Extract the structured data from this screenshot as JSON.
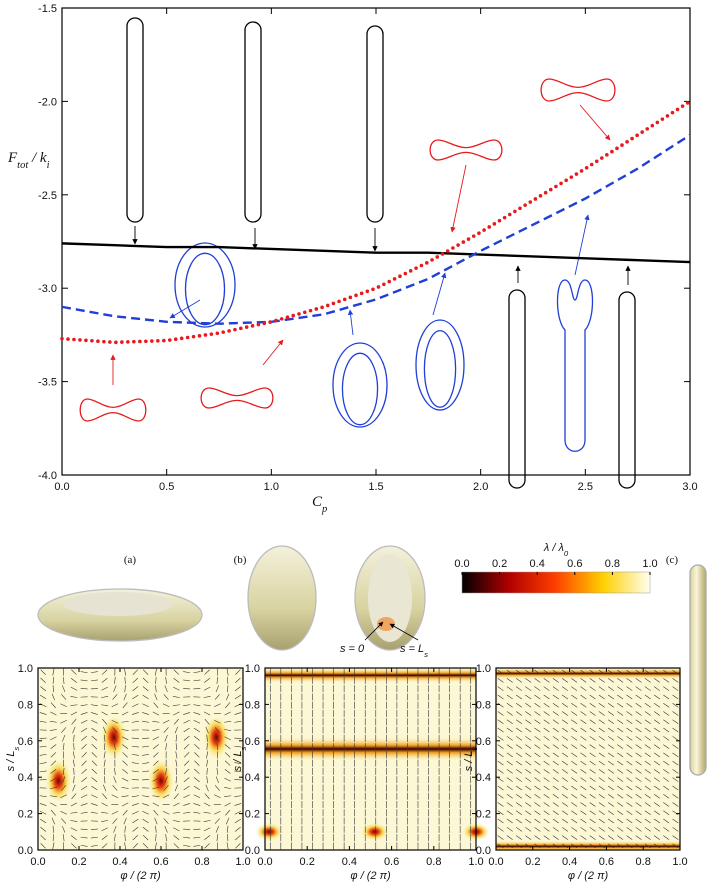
{
  "chart_data": [
    {
      "type": "line",
      "x_label": {
        "main": "C",
        "sub": "p"
      },
      "y_label": {
        "main": "F",
        "sub": "tot",
        "rest": " / k",
        "sub2": "i"
      },
      "xlim": [
        0,
        3
      ],
      "ylim": [
        -4,
        -1.5
      ],
      "xticks": [
        {
          "value": 0,
          "label": "0.0"
        },
        {
          "value": 0.5,
          "label": "0.5"
        },
        {
          "value": 1,
          "label": "1.0"
        },
        {
          "value": 1.5,
          "label": "1.5"
        },
        {
          "value": 2,
          "label": "2.0"
        },
        {
          "value": 2.5,
          "label": "2.5"
        },
        {
          "value": 3,
          "label": "3.0"
        }
      ],
      "yticks": [
        {
          "value": -1.5,
          "label": "-1.5"
        },
        {
          "value": -2,
          "label": "-2.0"
        },
        {
          "value": -2.5,
          "label": "-2.5"
        },
        {
          "value": -3,
          "label": "-3.0"
        },
        {
          "value": -3.5,
          "label": "-3.5"
        },
        {
          "value": -4,
          "label": "-4.0"
        }
      ],
      "x": [
        0,
        0.25,
        0.5,
        0.75,
        1,
        1.25,
        1.5,
        1.75,
        2,
        2.25,
        2.5,
        2.75,
        3
      ],
      "series": [
        {
          "color": "#000000",
          "style": "solid",
          "values": [
            -2.76,
            -2.77,
            -2.78,
            -2.78,
            -2.79,
            -2.8,
            -2.81,
            -2.81,
            -2.82,
            -2.83,
            -2.84,
            -2.85,
            -2.86
          ]
        },
        {
          "color": "#1f3fd6",
          "style": "dashed",
          "values": [
            -3.1,
            -3.15,
            -3.18,
            -3.19,
            -3.18,
            -3.14,
            -3.06,
            -2.95,
            -2.8,
            -2.66,
            -2.52,
            -2.36,
            -2.18
          ]
        },
        {
          "color": "#e8191c",
          "style": "dotted",
          "values": [
            -3.27,
            -3.29,
            -3.28,
            -3.24,
            -3.18,
            -3.1,
            -3.0,
            -2.86,
            -2.7,
            -2.53,
            -2.36,
            -2.18,
            -2.0
          ]
        }
      ]
    },
    {
      "type": "heatmap",
      "panel_label": "(a)",
      "x_label": "φ / (2 π)",
      "y_label": {
        "main": "s / L",
        "sub": "s"
      },
      "xlim": [
        0,
        1
      ],
      "ylim": [
        0,
        1
      ],
      "xticks": [
        {
          "value": 0,
          "label": "0.0"
        },
        {
          "value": 0.2,
          "label": "0.2"
        },
        {
          "value": 0.4,
          "label": "0.4"
        },
        {
          "value": 0.6,
          "label": "0.6"
        },
        {
          "value": 0.8,
          "label": "0.8"
        },
        {
          "value": 1,
          "label": "1.0"
        }
      ],
      "yticks": [
        {
          "value": 0,
          "label": "0.0"
        },
        {
          "value": 0.2,
          "label": "0.2"
        },
        {
          "value": 0.4,
          "label": "0.4"
        },
        {
          "value": 0.6,
          "label": "0.6"
        },
        {
          "value": 0.8,
          "label": "0.8"
        },
        {
          "value": 1,
          "label": "1.0"
        }
      ]
    },
    {
      "type": "heatmap",
      "panel_label": "(b)",
      "x_label": "φ / (2 π)",
      "y_label": {
        "main": "s / L",
        "sub": "s"
      },
      "annotations": [
        {
          "main": "s = 0"
        },
        {
          "main": "s = L",
          "sub": "s"
        }
      ],
      "xlim": [
        0,
        1
      ],
      "ylim": [
        0,
        1
      ],
      "xticks": [
        {
          "value": 0,
          "label": "0.0"
        },
        {
          "value": 0.2,
          "label": "0.2"
        },
        {
          "value": 0.4,
          "label": "0.4"
        },
        {
          "value": 0.6,
          "label": "0.6"
        },
        {
          "value": 0.8,
          "label": "0.8"
        },
        {
          "value": 1,
          "label": "1.0"
        }
      ],
      "yticks": [
        {
          "value": 0,
          "label": "0.0"
        },
        {
          "value": 0.2,
          "label": "0.2"
        },
        {
          "value": 0.4,
          "label": "0.4"
        },
        {
          "value": 0.6,
          "label": "0.6"
        },
        {
          "value": 0.8,
          "label": "0.8"
        },
        {
          "value": 1,
          "label": "1.0"
        }
      ]
    },
    {
      "type": "heatmap",
      "panel_label": "(c)",
      "x_label": "φ / (2 π)",
      "y_label": {
        "main": "s / L",
        "sub": "s"
      },
      "xlim": [
        0,
        1
      ],
      "ylim": [
        0,
        1
      ],
      "xticks": [
        {
          "value": 0,
          "label": "0.0"
        },
        {
          "value": 0.2,
          "label": "0.2"
        },
        {
          "value": 0.4,
          "label": "0.4"
        },
        {
          "value": 0.6,
          "label": "0.6"
        },
        {
          "value": 0.8,
          "label": "0.8"
        },
        {
          "value": 1,
          "label": "1.0"
        }
      ],
      "yticks": [
        {
          "value": 0,
          "label": "0.0"
        },
        {
          "value": 0.2,
          "label": "0.2"
        },
        {
          "value": 0.4,
          "label": "0.4"
        },
        {
          "value": 0.6,
          "label": "0.6"
        },
        {
          "value": 0.8,
          "label": "0.8"
        },
        {
          "value": 1,
          "label": "1.0"
        }
      ]
    },
    {
      "type": "colorbar",
      "title": {
        "main": "λ / λ",
        "sub": "0"
      },
      "lim": [
        0,
        1
      ],
      "ticks": [
        {
          "value": 0,
          "label": "0.0"
        },
        {
          "value": 0.2,
          "label": "0.2"
        },
        {
          "value": 0.4,
          "label": "0.4"
        },
        {
          "value": 0.6,
          "label": "0.6"
        },
        {
          "value": 0.8,
          "label": "0.8"
        },
        {
          "value": 1,
          "label": "1.0"
        }
      ]
    }
  ]
}
